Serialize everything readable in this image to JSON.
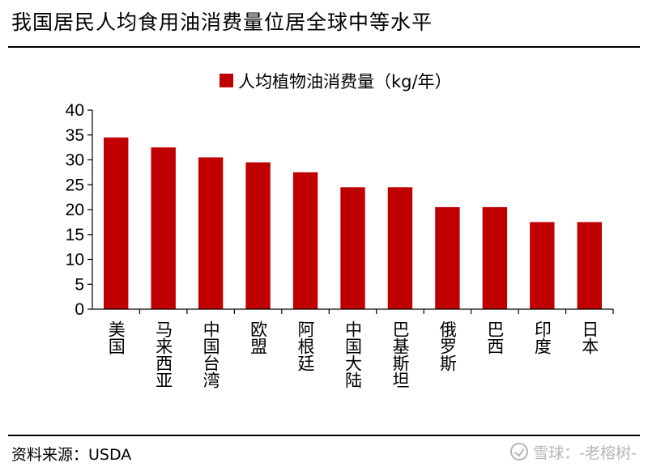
{
  "title": "我国居民人均食用油消费量位居全球中等水平",
  "source": "资料来源：USDA",
  "watermark": "雪球：-老榕树-",
  "chart_data": {
    "type": "bar",
    "title": "",
    "legend": [
      "人均植物油消费量（kg/年）"
    ],
    "legend_position": "top",
    "categories": [
      "美国",
      "马来西亚",
      "中国台湾",
      "欧盟",
      "阿根廷",
      "中国大陆",
      "巴基斯坦",
      "俄罗斯",
      "巴西",
      "印度",
      "日本"
    ],
    "series": [
      {
        "name": "人均植物油消费量（kg/年）",
        "values": [
          34.5,
          32.5,
          30.5,
          29.5,
          27.5,
          24.5,
          24.5,
          20.5,
          20.5,
          17.5,
          17.5
        ]
      }
    ],
    "yticks": [
      0,
      5,
      10,
      15,
      20,
      25,
      30,
      35,
      40
    ],
    "ylim": [
      0,
      40
    ],
    "xlabel": "",
    "ylabel": "",
    "bar_color": "#C00000"
  }
}
